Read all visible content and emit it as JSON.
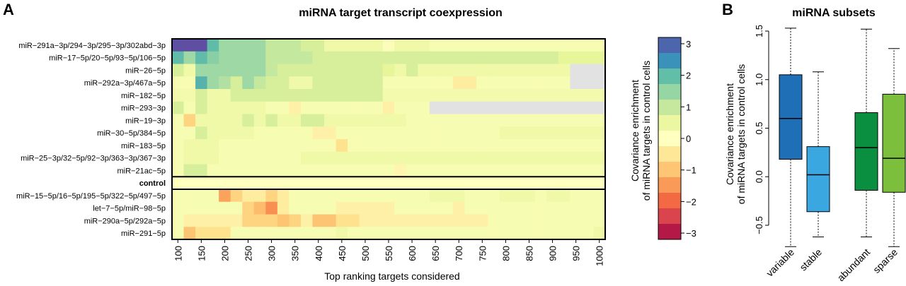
{
  "chart_data": [
    {
      "panel": "A",
      "type": "heatmap",
      "title": "miRNA target transcript coexpression",
      "xlabel": "Top ranking targets considered",
      "x_ticks": [
        "100",
        "150",
        "200",
        "250",
        "300",
        "350",
        "400",
        "450",
        "500",
        "550",
        "600",
        "650",
        "700",
        "750",
        "800",
        "850",
        "900",
        "950",
        "1000"
      ],
      "x": [
        100,
        125,
        150,
        175,
        200,
        225,
        250,
        275,
        300,
        325,
        350,
        375,
        400,
        425,
        450,
        475,
        500,
        525,
        550,
        575,
        600,
        625,
        650,
        675,
        700,
        725,
        750,
        775,
        800,
        825,
        850,
        875,
        900,
        925,
        950,
        975,
        1000
      ],
      "rows": [
        "miR−291a−3p/294−3p/295−3p/302abd−3p",
        "miR−17−5p/20−5p/93−5p/106−5p",
        "miR−26−5p",
        "miR−292a−3p/467a−5p",
        "miR−182−5p",
        "miR−293−3p",
        "miR−19−3p",
        "miR−30−5p/384−5p",
        "miR−183−5p",
        "miR−25−3p/32−5p/92−3p/363−3p/367−3p",
        "miR−21ac−5p",
        "control",
        "miR−15−5p/16−5p/195−5p/322−5p/497−5p",
        "let−7−5p/miR−98−5p",
        "miR−290a−5p/292a−5p",
        "miR−291−5p"
      ],
      "bold_row": "control",
      "values": [
        [
          3.2,
          3.2,
          3.2,
          2.0,
          1.4,
          1.4,
          1.4,
          1.4,
          1.0,
          1.0,
          1.0,
          0.8,
          0.8,
          0.4,
          0.4,
          0.4,
          0.4,
          0.4,
          0.1,
          0.4,
          0.4,
          0.4,
          0.2,
          0.2,
          0.2,
          0.2,
          0.2,
          0.2,
          0.2,
          0.2,
          0.2,
          0.2,
          0.2,
          0.2,
          0.2,
          0.2,
          0.2
        ],
        [
          2.0,
          1.4,
          2.0,
          1.6,
          1.4,
          1.4,
          1.4,
          1.4,
          1.0,
          1.0,
          1.0,
          1.0,
          0.8,
          0.8,
          0.8,
          0.8,
          0.8,
          0.8,
          0.8,
          0.8,
          0.8,
          0.8,
          0.8,
          0.8,
          0.8,
          0.8,
          0.8,
          0.8,
          0.8,
          0.8,
          0.8,
          0.8,
          0.8,
          0.6,
          0.6,
          0.6,
          0.6
        ],
        [
          0.8,
          0.4,
          1.4,
          1.4,
          1.4,
          1.4,
          1.4,
          1.4,
          1.0,
          0.8,
          0.8,
          0.8,
          0.8,
          0.8,
          0.8,
          0.8,
          0.8,
          0.8,
          0.6,
          0.4,
          0.8,
          0.4,
          0.4,
          0.4,
          0.4,
          0.4,
          0.4,
          0.4,
          0.4,
          0.4,
          0.4,
          0.4,
          0.4,
          0.4,
          -9,
          -9,
          -9
        ],
        [
          0.2,
          0.2,
          2.1,
          1.4,
          1.2,
          0.8,
          1.4,
          1.0,
          0.8,
          0.8,
          0.4,
          0.4,
          0.8,
          0.8,
          0.8,
          0.8,
          0.8,
          0.8,
          0.2,
          0.2,
          0.2,
          0.2,
          0.2,
          0.2,
          -0.4,
          -0.4,
          0.2,
          0.2,
          0.2,
          0.2,
          0.2,
          0.2,
          0.2,
          0.2,
          -9,
          -9,
          -9
        ],
        [
          0.3,
          0.3,
          0.8,
          0.4,
          0.4,
          0.8,
          0.8,
          0.8,
          0.8,
          0.8,
          0.8,
          0.8,
          0.8,
          0.8,
          0.8,
          0.8,
          0.8,
          0.8,
          0.3,
          0.3,
          0.3,
          0.3,
          0.3,
          0.3,
          0.3,
          0.3,
          0.3,
          0.3,
          0.3,
          0.3,
          0.3,
          0.3,
          0.3,
          0.3,
          0.3,
          0.3,
          0.3
        ],
        [
          0.8,
          0.2,
          0.8,
          0.4,
          0.4,
          0.4,
          0.4,
          0.4,
          0.2,
          0.2,
          -0.3,
          0.2,
          0.2,
          0.2,
          0.2,
          0.2,
          0.2,
          0.2,
          -0.3,
          0.2,
          0.2,
          0.2,
          -9,
          -9,
          -9,
          -9,
          -9,
          -9,
          -9,
          -9,
          -9,
          -9,
          -9,
          -9,
          -9,
          -9,
          -9
        ],
        [
          0.2,
          -0.8,
          0.4,
          0.4,
          0.4,
          0.4,
          0.8,
          0.4,
          0.8,
          0.4,
          0.4,
          0.8,
          0.8,
          0.4,
          0.4,
          0.4,
          0.4,
          0.4,
          0.4,
          0.4,
          0.2,
          0.2,
          0.2,
          0.2,
          0.2,
          0.2,
          0.2,
          0.2,
          0.2,
          0.2,
          0.2,
          0.2,
          0.2,
          0.2,
          0.2,
          0.2,
          0.2
        ],
        [
          0.2,
          0.2,
          0.8,
          0.4,
          0.4,
          0.4,
          0.4,
          0.2,
          0.2,
          0.2,
          0.2,
          0.2,
          -0.3,
          -0.3,
          0.2,
          0.2,
          0.2,
          0.2,
          0.2,
          0.2,
          0.2,
          0.2,
          0.2,
          0.2,
          0.2,
          0.2,
          0.2,
          0.2,
          0.4,
          0.4,
          0.4,
          0.4,
          0.4,
          0.4,
          0.4,
          0.4,
          0.4
        ],
        [
          0.2,
          0.4,
          0.4,
          0.4,
          0.2,
          0.2,
          0.2,
          0.2,
          0.2,
          0.2,
          0.2,
          0.2,
          0.2,
          0.2,
          -0.6,
          0.2,
          0.2,
          0.2,
          0.2,
          0.2,
          0.2,
          0.2,
          0.2,
          0.2,
          0.2,
          0.2,
          0.2,
          0.2,
          0.2,
          0.2,
          0.2,
          0.2,
          0.2,
          0.2,
          0.2,
          0.2,
          0.2
        ],
        [
          0.2,
          0.4,
          0.4,
          0.4,
          0.2,
          0.2,
          0.2,
          0.2,
          0.2,
          0.2,
          0.2,
          0.4,
          0.4,
          0.4,
          0.4,
          0.4,
          0.4,
          0.4,
          0.4,
          0.4,
          0.4,
          0.4,
          0.4,
          0.4,
          0.4,
          0.4,
          0.4,
          0.4,
          0.4,
          0.4,
          0.4,
          0.4,
          0.4,
          0.4,
          0.4,
          0.4,
          0.4
        ],
        [
          0.2,
          0.8,
          0.8,
          0.2,
          0.2,
          0.2,
          0.2,
          0.2,
          0.2,
          0.2,
          0.2,
          0.2,
          0.2,
          0.2,
          0.2,
          0.2,
          0.2,
          0.2,
          0.2,
          -0.2,
          0.2,
          0.2,
          0.2,
          0.2,
          0.2,
          0.2,
          0.2,
          0.2,
          0.2,
          0.2,
          0.2,
          0.2,
          0.2,
          0.2,
          0.2,
          0.2,
          0.2
        ],
        [
          0,
          0,
          0,
          0,
          0,
          0,
          0,
          0,
          0,
          0,
          0,
          0,
          0,
          0,
          0,
          0,
          0,
          0,
          0,
          0,
          0,
          0,
          0,
          0,
          0,
          0,
          0,
          0,
          0,
          0,
          0,
          0,
          0,
          0,
          0,
          0,
          0
        ],
        [
          0.2,
          0.2,
          0.2,
          0.2,
          -1.4,
          -0.8,
          -0.4,
          -0.4,
          -0.8,
          -0.4,
          0.2,
          0.2,
          0.2,
          0.2,
          0.2,
          0.2,
          0.2,
          0.2,
          0.2,
          0.2,
          0.2,
          0.2,
          0.4,
          0.4,
          0.4,
          0.2,
          0.2,
          0.2,
          0.4,
          0.4,
          0.4,
          0.2,
          0.4,
          0.4,
          0.2,
          0.2,
          0.2
        ],
        [
          0.2,
          0.2,
          0.2,
          0.2,
          0.2,
          0.2,
          -0.8,
          -1.1,
          -1.6,
          -0.4,
          0.2,
          0.2,
          0.2,
          0.2,
          -0.3,
          -0.3,
          -0.3,
          -0.3,
          -0.3,
          0.2,
          0.2,
          0.2,
          0.2,
          0.2,
          -0.3,
          0.2,
          0.2,
          0.2,
          0.2,
          0.2,
          0.2,
          0.2,
          0.2,
          0.2,
          0.2,
          0.2,
          0.2
        ],
        [
          0.2,
          -0.3,
          -0.3,
          -0.3,
          -0.3,
          -0.3,
          -0.8,
          -0.8,
          -0.8,
          -1.0,
          -0.8,
          -0.3,
          -1.0,
          -1.0,
          -0.6,
          -0.6,
          -0.3,
          -0.3,
          -0.3,
          -0.3,
          -0.3,
          -0.3,
          -0.3,
          -0.3,
          -0.3,
          -0.3,
          -0.3,
          0.2,
          0.2,
          0.2,
          0.2,
          0.2,
          0.2,
          0.2,
          0.2,
          0.2,
          0.2
        ],
        [
          0.2,
          -1.0,
          -0.6,
          -0.6,
          -0.6,
          0.2,
          0.2,
          0.2,
          0.2,
          0.2,
          0.2,
          0.2,
          0.2,
          0.2,
          0.4,
          0.2,
          0.2,
          0.2,
          0.2,
          0.2,
          0.2,
          0.2,
          0.2,
          0.2,
          0.2,
          0.2,
          0.2,
          0.2,
          0.2,
          0.2,
          0.2,
          0.2,
          0.2,
          0.2,
          0.2,
          0.2,
          0.4
        ]
      ],
      "missing_value": -9,
      "missing_color": "#e2e2e2",
      "colorbar": {
        "label": [
          "Covariance enrichment",
          "of miRNA targets in control cells"
        ],
        "ticks": [
          3,
          2,
          1,
          0,
          -1,
          -2,
          -3
        ],
        "range": [
          -3.2,
          3.2
        ],
        "colors": [
          "#9e0142",
          "#d53e4f",
          "#f46d43",
          "#fdae61",
          "#fee08b",
          "#ffffbf",
          "#e6f598",
          "#abdda4",
          "#66c2a5",
          "#3288bd",
          "#5e4fa2"
        ]
      }
    },
    {
      "panel": "B",
      "type": "box",
      "title": "miRNA subsets",
      "ylabel": [
        "Covariance enrichment",
        "of miRNA targets in control cells"
      ],
      "ylim": [
        -0.8,
        1.6
      ],
      "y_ticks": [
        "1.5",
        "1.0",
        "0.5",
        "0.0",
        "−0.5"
      ],
      "y_tick_values": [
        1.5,
        1.0,
        0.5,
        0.0,
        -0.5
      ],
      "categories": [
        "variable",
        "stable",
        "abundant",
        "sparse"
      ],
      "boxes": [
        {
          "min": -0.72,
          "q1": 0.18,
          "median": 0.6,
          "q3": 1.05,
          "max": 1.53,
          "color": "#1f6fb6"
        },
        {
          "min": -0.62,
          "q1": -0.36,
          "median": 0.02,
          "q3": 0.31,
          "max": 1.08,
          "color": "#3aa7e0"
        },
        {
          "min": -0.62,
          "q1": -0.14,
          "median": 0.3,
          "q3": 0.66,
          "max": 1.52,
          "color": "#0a8f40"
        },
        {
          "min": -0.72,
          "q1": -0.16,
          "median": 0.19,
          "q3": 0.85,
          "max": 1.32,
          "color": "#7cbf3c"
        }
      ]
    }
  ]
}
